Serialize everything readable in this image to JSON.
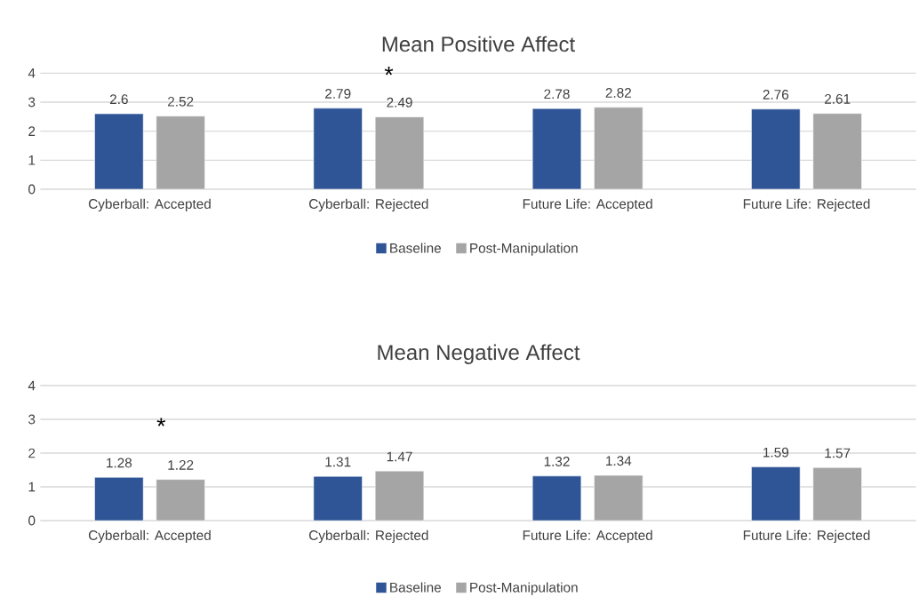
{
  "chart_data": [
    {
      "type": "bar",
      "title": "Mean Positive Affect",
      "categories": [
        "Cyberball: Accepted",
        "Cyberball: Rejected",
        "Future Life: Accepted",
        "Future Life: Rejected"
      ],
      "series": [
        {
          "name": "Baseline",
          "color": "#2f5597",
          "values": [
            2.6,
            2.79,
            2.78,
            2.76
          ]
        },
        {
          "name": "Post-Manipulation",
          "color": "#a5a5a5",
          "values": [
            2.52,
            2.49,
            2.82,
            2.61
          ]
        }
      ],
      "ylim": [
        0,
        4
      ],
      "yticks": [
        0,
        1,
        2,
        3,
        4
      ],
      "grid": "y",
      "legend": "bottom",
      "data_labels": true,
      "annotations": [
        "*"
      ]
    },
    {
      "type": "bar",
      "title": "Mean Negative Affect",
      "categories": [
        "Cyberball: Accepted",
        "Cyberball: Rejected",
        "Future Life: Accepted",
        "Future Life: Rejected"
      ],
      "series": [
        {
          "name": "Baseline",
          "color": "#2f5597",
          "values": [
            1.28,
            1.31,
            1.32,
            1.59
          ]
        },
        {
          "name": "Post-Manipulation",
          "color": "#a5a5a5",
          "values": [
            1.22,
            1.47,
            1.34,
            1.57
          ]
        }
      ],
      "ylim": [
        0,
        4
      ],
      "yticks": [
        0,
        1,
        2,
        3,
        4
      ],
      "grid": "y",
      "legend": "bottom",
      "data_labels": true,
      "annotations": [
        "*"
      ]
    }
  ]
}
